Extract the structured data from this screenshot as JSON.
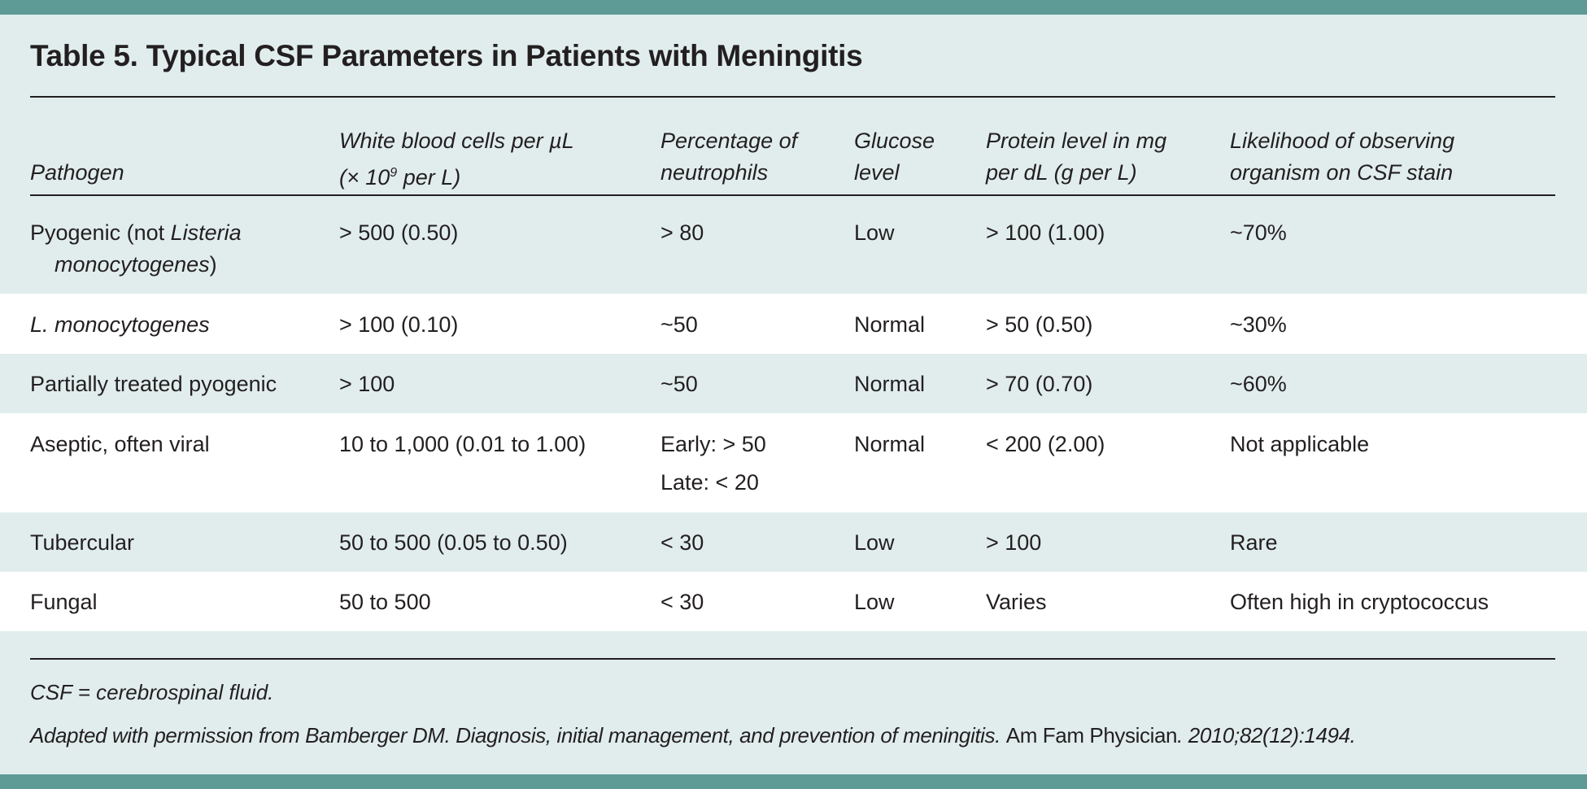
{
  "title": "Table 5. Typical CSF Parameters in Patients with Meningitis",
  "colors": {
    "band": "#5e9b97",
    "background": "#e1eded",
    "alt_row": "#ffffff"
  },
  "headers": [
    {
      "line1": "",
      "line2": "Pathogen"
    },
    {
      "line1": "White blood cells per µL",
      "line2_pre": "(× 10",
      "line2_sup": "9",
      "line2_post": " per L)"
    },
    {
      "line1": "Percentage of",
      "line2": "neutrophils"
    },
    {
      "line1": "Glucose",
      "line2": "level"
    },
    {
      "line1": "Protein level in mg",
      "line2": "per dL (g per L)"
    },
    {
      "line1": "Likelihood of observing",
      "line2": "organism on CSF stain"
    }
  ],
  "rows": [
    {
      "pathogen_pre": "Pyogenic (not ",
      "pathogen_italic": "Listeria",
      "pathogen_line2": "monocytogenes",
      "pathogen_line2_post": ")",
      "wbc": "> 500 (0.50)",
      "neutrophils": "> 80",
      "neutrophils2": "",
      "glucose": "Low",
      "protein": "> 100 (1.00)",
      "likelihood": "~70%"
    },
    {
      "pathogen_italic": "L. monocytogenes",
      "wbc": "> 100 (0.10)",
      "neutrophils": "~50",
      "neutrophils2": "",
      "glucose": "Normal",
      "protein": "> 50 (0.50)",
      "likelihood": "~30%"
    },
    {
      "pathogen": "Partially treated pyogenic",
      "wbc": "> 100",
      "neutrophils": "~50",
      "neutrophils2": "",
      "glucose": "Normal",
      "protein": "> 70 (0.70)",
      "likelihood": "~60%"
    },
    {
      "pathogen": "Aseptic, often viral",
      "wbc": "10 to 1,000 (0.01 to 1.00)",
      "neutrophils": "Early: > 50",
      "neutrophils2": "Late: < 20",
      "glucose": "Normal",
      "protein": "< 200 (2.00)",
      "likelihood": "Not applicable"
    },
    {
      "pathogen": "Tubercular",
      "wbc": "50 to 500 (0.05 to 0.50)",
      "neutrophils": "< 30",
      "neutrophils2": "",
      "glucose": "Low",
      "protein": "> 100",
      "likelihood": "Rare"
    },
    {
      "pathogen": "Fungal",
      "wbc": "50 to 500",
      "neutrophils": "< 30",
      "neutrophils2": "",
      "glucose": "Low",
      "protein": "Varies",
      "likelihood": "Often high in cryptococcus"
    }
  ],
  "footnotes": {
    "abbrev": "CSF = cerebrospinal fluid.",
    "source_pre": "Adapted with permission from Bamberger DM. Diagnosis, initial management, and prevention of meningitis. ",
    "source_journal": "Am Fam Physician",
    "source_post": ". 2010;82(12):1494."
  }
}
